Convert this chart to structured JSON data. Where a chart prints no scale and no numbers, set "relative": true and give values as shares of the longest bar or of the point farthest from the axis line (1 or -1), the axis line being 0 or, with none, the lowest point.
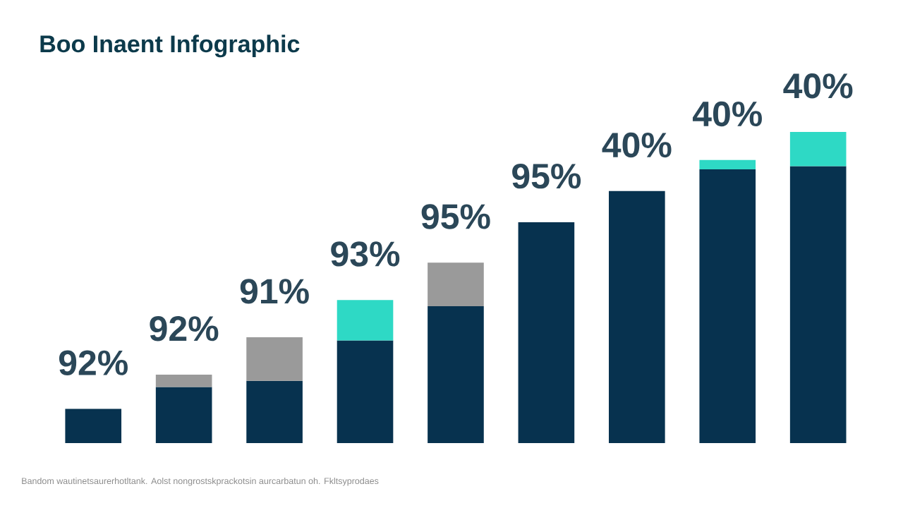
{
  "chart_data": {
    "type": "bar",
    "title": "Boo Inaent Infographic",
    "categories": [
      null,
      null,
      null,
      null,
      null,
      null,
      null,
      null,
      null
    ],
    "stacked": true,
    "relative": true,
    "series": [
      {
        "color": "#07324f",
        "values": [
          0.11,
          0.18,
          0.2,
          0.33,
          0.44,
          0.71,
          0.81,
          0.88,
          0.89
        ]
      },
      {
        "colors": [
          "#9a9a9a",
          "#9a9a9a",
          "#9a9a9a",
          "#2ed9c5",
          "#9a9a9a",
          "#9a9a9a",
          "#9a9a9a",
          "#2ed9c5",
          "#2ed9c5"
        ],
        "values": [
          null,
          0.04,
          0.14,
          0.13,
          0.14,
          null,
          null,
          0.03,
          0.11
        ]
      }
    ],
    "annotations": [
      "92%",
      "92%",
      "91%",
      "93%",
      "95%",
      "95%",
      "40%",
      "40%",
      "40%",
      "Bandom wautinetsaurerhotltank. Aolst nongrostskprackotsin aurcarbatun oh. Fkltsyprodaes"
    ]
  }
}
